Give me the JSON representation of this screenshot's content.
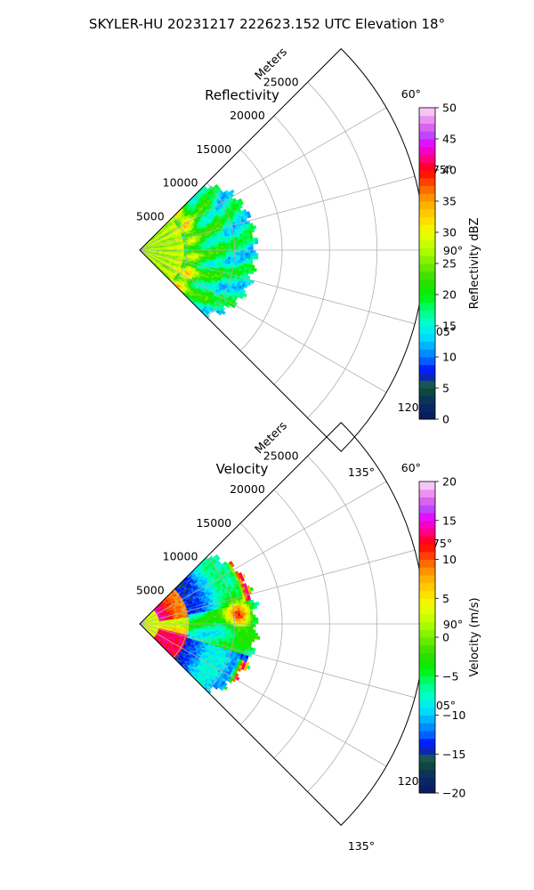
{
  "figure_title": "SKYLER-HU  20231217  222623.152 UTC Elevation 18°",
  "colors": {
    "sector_edge": "#000000",
    "grid": "#b0b0b0",
    "background": "#ffffff"
  },
  "chart_data": [
    {
      "type": "heatmap",
      "projection": "polar-sector",
      "title": "Reflectivity",
      "radial_axis_label": "Meters",
      "radial_ticks": [
        5000,
        10000,
        15000,
        20000,
        25000
      ],
      "radial_tick_labels": [
        "5000",
        "10000",
        "15000",
        "20000",
        "25000"
      ],
      "radial_range": [
        0,
        30000
      ],
      "angle_range_deg": [
        45,
        135
      ],
      "angle_ticks_deg": [
        60,
        75,
        90,
        105,
        120,
        135
      ],
      "angle_tick_labels": [
        "60°",
        "75°",
        "90°",
        "105°",
        "120°",
        "135°"
      ],
      "grid": true,
      "colorbar": {
        "label": "Reflectivity dBZ",
        "range": [
          0,
          50
        ],
        "ticks": [
          0,
          5,
          10,
          15,
          20,
          25,
          30,
          35,
          40,
          45,
          50
        ],
        "tick_labels": [
          "0",
          "5",
          "10",
          "15",
          "20",
          "25",
          "30",
          "35",
          "40",
          "45",
          "50"
        ],
        "levels": 40
      },
      "field_description": "Near-range values 25–30 dBZ with a 35–40 dBZ band around 5000–6000 m; 15–22 dBZ beyond to about 12000 m",
      "data_extent_m": 12500
    },
    {
      "type": "heatmap",
      "projection": "polar-sector",
      "title": "Velocity",
      "radial_axis_label": "Meters",
      "radial_ticks": [
        5000,
        10000,
        15000,
        20000,
        25000
      ],
      "radial_tick_labels": [
        "5000",
        "10000",
        "15000",
        "20000",
        "25000"
      ],
      "radial_range": [
        0,
        30000
      ],
      "angle_range_deg": [
        45,
        135
      ],
      "angle_ticks_deg": [
        60,
        75,
        90,
        105,
        120,
        135
      ],
      "angle_tick_labels": [
        "60°",
        "75°",
        "90°",
        "105°",
        "120°",
        "135°"
      ],
      "grid": true,
      "colorbar": {
        "label": "Velocity (m/s)",
        "range": [
          -20,
          20
        ],
        "ticks": [
          -20,
          -15,
          -10,
          -5,
          0,
          5,
          10,
          15,
          20
        ],
        "tick_labels": [
          "−20",
          "−15",
          "−10",
          "−5",
          "0",
          "5",
          "10",
          "15",
          "20"
        ],
        "levels": 40
      },
      "field_description": "Near-range outbound 10–15 m/s lobes at 60–80° and 100–125°, yellow 0–5 m/s near 90°, green −5 to −10 m/s in the middle, red +10 m/s around 10000 m at 80–90°",
      "data_extent_m": 12500
    }
  ]
}
